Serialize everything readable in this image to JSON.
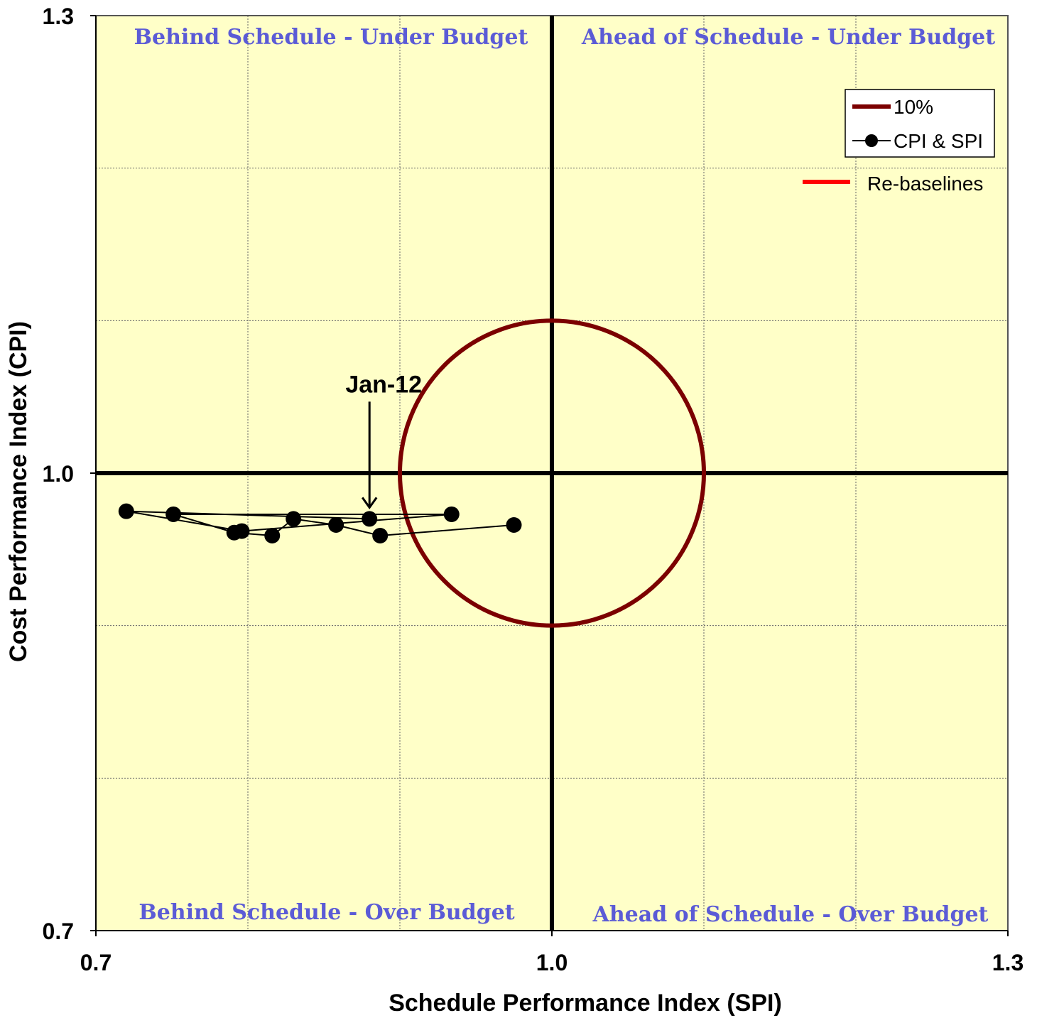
{
  "chart_data": {
    "type": "scatter",
    "xlabel": "Schedule Performance Index (SPI)",
    "ylabel": "Cost Performance Index (CPI)",
    "xlim": [
      0.7,
      1.3
    ],
    "ylim": [
      0.7,
      1.3
    ],
    "x_ticks": [
      "0.7",
      "1.0",
      "1.3"
    ],
    "y_ticks": [
      "0.7",
      "1.0",
      "1.3"
    ],
    "grid": true,
    "background_color": "#ffffc8",
    "quadrant_labels": {
      "top_left": "Behind Schedule - Under Budget",
      "top_right": "Ahead of Schedule - Under Budget",
      "bottom_left": "Behind Schedule - Over Budget",
      "bottom_right": "Ahead of Schedule - Over Budget"
    },
    "circle": {
      "name": "10%",
      "center": [
        1.0,
        1.0
      ],
      "radius": 0.1,
      "color": "#7b0000"
    },
    "series": [
      {
        "name": "CPI & SPI",
        "color": "#000000",
        "points": [
          [
            0.975,
            0.966
          ],
          [
            0.887,
            0.959
          ],
          [
            0.858,
            0.966
          ],
          [
            0.83,
            0.97
          ],
          [
            0.816,
            0.959
          ],
          [
            0.791,
            0.961
          ],
          [
            0.751,
            0.973
          ],
          [
            0.934,
            0.973
          ],
          [
            0.796,
            0.962
          ],
          [
            0.72,
            0.975
          ],
          [
            0.88,
            0.97
          ]
        ]
      }
    ],
    "legend": {
      "position": "top-right",
      "entries": [
        {
          "label": "10%",
          "color": "#7b0000",
          "marker": "line"
        },
        {
          "label": "CPI & SPI",
          "color": "#000000",
          "marker": "line-dot"
        }
      ],
      "extra_entry": {
        "label": "Re-baselines",
        "color": "#ff0000"
      }
    },
    "annotations": [
      {
        "text": "Jan-12",
        "x": 0.88,
        "y": 0.97
      }
    ]
  }
}
